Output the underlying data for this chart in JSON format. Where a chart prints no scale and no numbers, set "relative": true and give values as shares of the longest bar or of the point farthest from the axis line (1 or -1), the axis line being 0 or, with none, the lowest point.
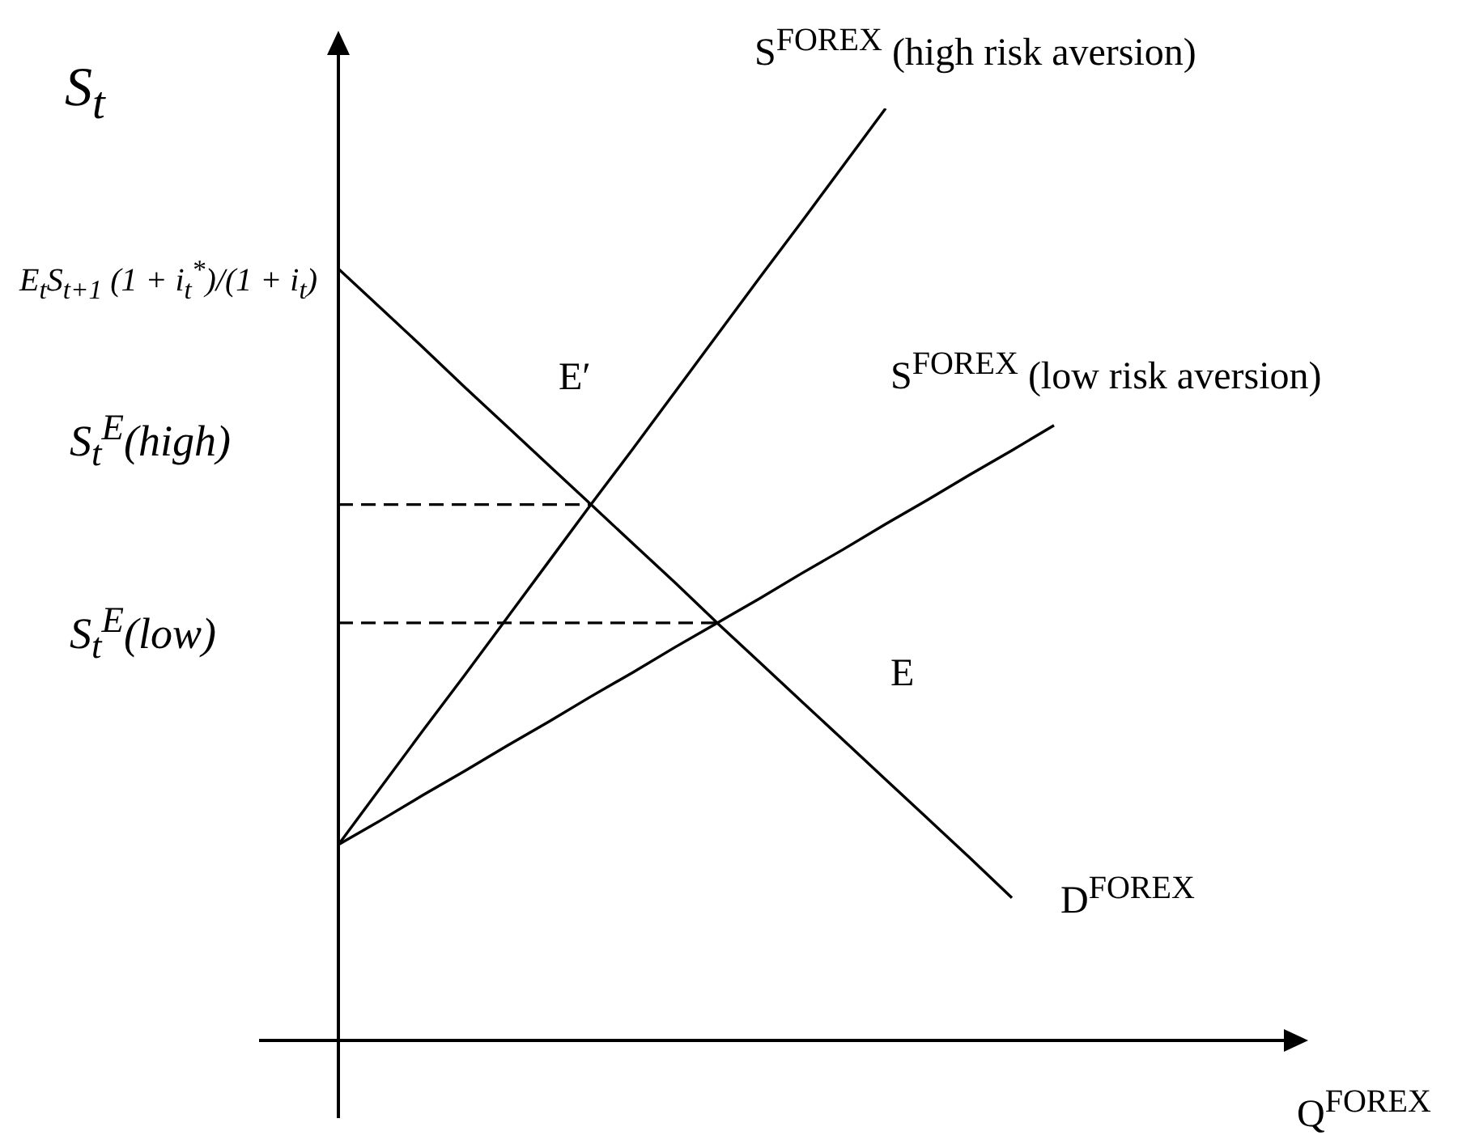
{
  "chart_data": {
    "type": "line",
    "relative": true,
    "ylabel": "S$_{t}$",
    "xlabel": "Q$^{FOREX}$",
    "line_style": "solid",
    "categories": [
      null,
      null,
      null,
      null,
      null,
      null,
      null,
      null,
      null,
      null,
      null,
      null,
      null,
      null,
      null,
      null,
      null,
      null,
      null,
      null,
      null,
      null,
      null,
      null,
      null,
      null,
      null
    ],
    "series": [
      {
        "name": "S$^{FOREX}$ (high risk aversion)",
        "color": "#000000",
        "values": [
          0.21,
          0.271,
          0.332,
          0.392,
          0.453,
          0.514,
          0.575,
          0.635,
          0.696,
          0.757,
          0.818,
          0.878,
          0.939,
          1,
          null,
          null,
          null,
          null,
          null,
          null,
          null,
          null,
          null,
          null,
          null,
          null,
          null
        ]
      },
      {
        "name": "S$^{FOREX}$ (low risk aversion)",
        "color": "#000000",
        "values": [
          0.21,
          0.236,
          0.263,
          0.289,
          0.316,
          0.342,
          0.369,
          0.395,
          0.422,
          0.448,
          0.474,
          0.501,
          0.527,
          0.554,
          0.58,
          0.607,
          0.633,
          0.66,
          null,
          null,
          null,
          null,
          null,
          null,
          null,
          null,
          null
        ]
      },
      {
        "name": "D$^{FOREX}$",
        "color": "#000000",
        "values": [
          0.828,
          0.786,
          0.744,
          0.701,
          0.659,
          0.617,
          0.575,
          0.533,
          0.491,
          0.448,
          0.406,
          0.364,
          0.322,
          0.28,
          0.238,
          0.196,
          0.153,
          null,
          null,
          null,
          null,
          null,
          null,
          null,
          null,
          null,
          null
        ]
      },
      {
        "color": "#000000",
        "line_style": "dashed",
        "values": [
          0.575,
          0.575,
          0.575,
          0.575,
          0.575,
          0.575,
          0.575,
          null,
          null,
          null,
          null,
          null,
          null,
          null,
          null,
          null,
          null,
          null,
          null,
          null,
          null,
          null,
          null,
          null,
          null,
          null,
          null
        ]
      },
      {
        "color": "#000000",
        "line_style": "dashed",
        "values": [
          0.448,
          0.448,
          0.448,
          0.448,
          0.448,
          0.448,
          0.448,
          0.448,
          0.448,
          0.448,
          null,
          null,
          null,
          null,
          null,
          null,
          null,
          null,
          null,
          null,
          null,
          null,
          null,
          null,
          null,
          null,
          null
        ]
      }
    ],
    "annotations": [
      "E$_{t}$S$_{t+1}$ (1 + i$_{t}$$^{*}$)/(1 + i$_{t}$)",
      "S$_{t}$$^{E}$(high)",
      "S$_{t}$$^{E}$(low)",
      "E′",
      "E"
    ]
  }
}
